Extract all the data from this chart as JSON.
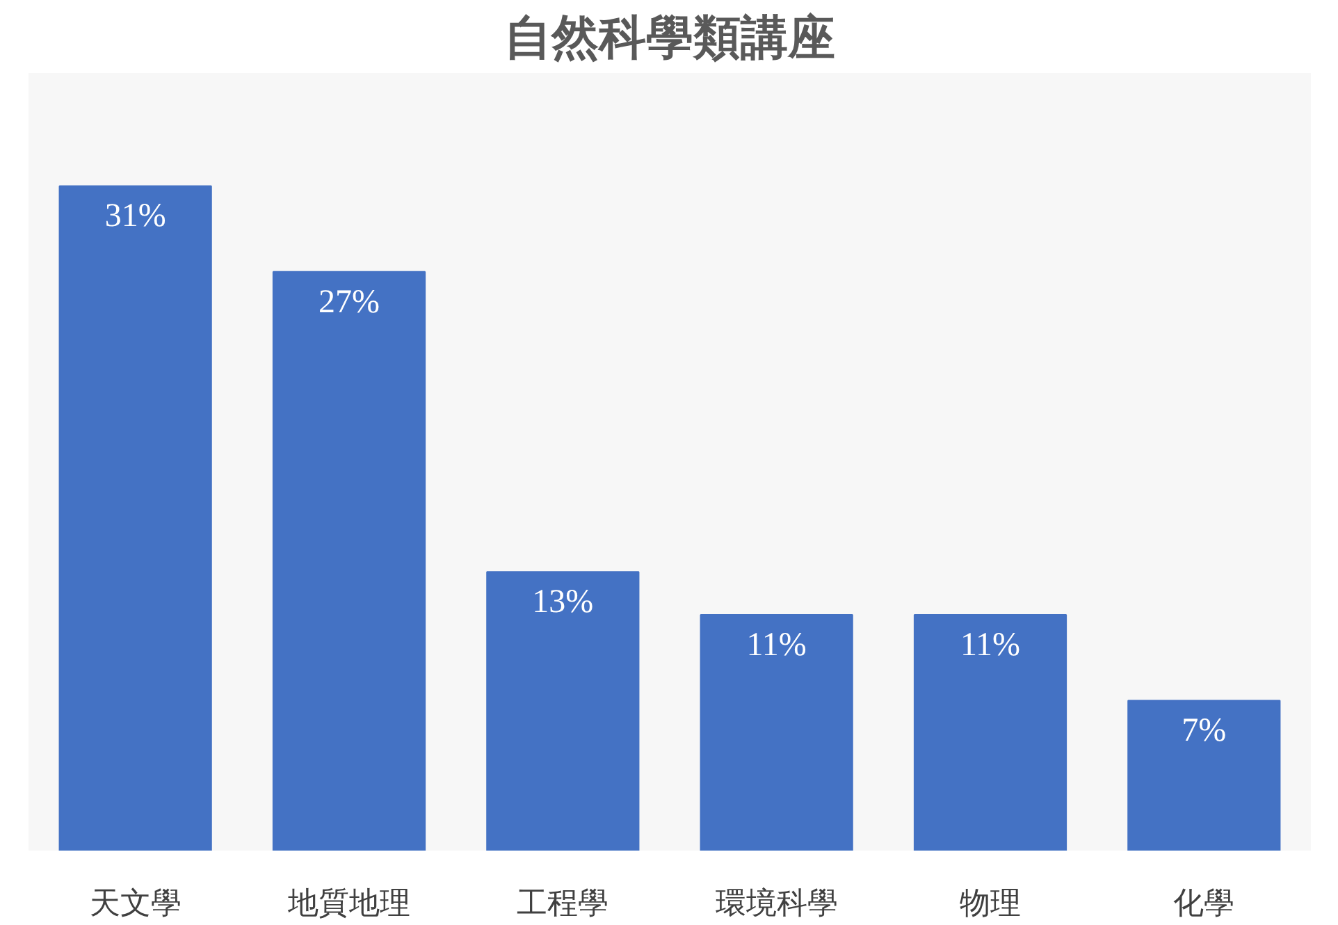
{
  "chart_data": {
    "type": "bar",
    "title": "自然科學類講座",
    "categories": [
      "天文學",
      "地質地理",
      "工程學",
      "環境科學",
      "物理",
      "化學"
    ],
    "values": [
      31,
      27,
      13,
      11,
      11,
      7
    ],
    "value_labels": [
      "31%",
      "27%",
      "13%",
      "11%",
      "11%",
      "7%"
    ],
    "color": "#4472c4"
  }
}
